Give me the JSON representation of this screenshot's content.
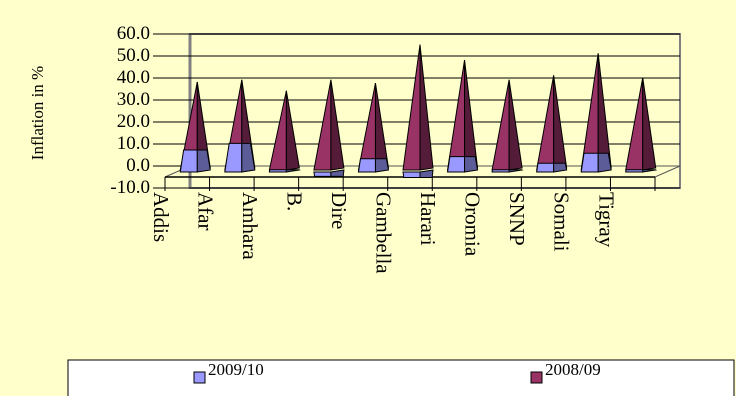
{
  "chart_data": {
    "type": "bar",
    "ylabel": "Inflation in %",
    "ylim": [
      -10,
      60
    ],
    "yticks": [
      "60.0",
      "50.0",
      "40.0",
      "30.0",
      "20.0",
      "10.0",
      "0.0",
      "-10.0"
    ],
    "categories": [
      "Addis",
      "Afar",
      "Amhara",
      "B.",
      "Dire",
      "Gambella",
      "Harari",
      "Oromia",
      "SNNP",
      "Somali",
      "Tigray"
    ],
    "series": [
      {
        "name": "2009/10",
        "color": "#9999ff",
        "values": [
          10.0,
          13.0,
          1.0,
          -2.0,
          6.0,
          -2.5,
          7.0,
          1.0,
          4.0,
          8.5,
          1.0
        ]
      },
      {
        "name": "2008/09",
        "color": "#993366",
        "values": [
          40.0,
          41.0,
          36.0,
          41.0,
          39.5,
          57.0,
          50.0,
          41.0,
          43.0,
          53.0,
          42.0
        ]
      }
    ],
    "legend_position": "bottom",
    "grid": true
  }
}
